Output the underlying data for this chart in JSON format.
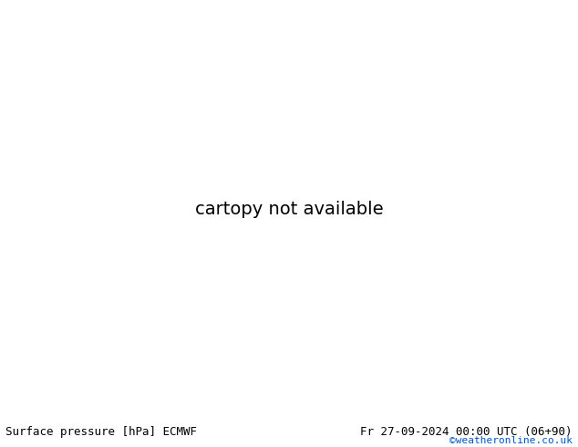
{
  "title_left": "Surface pressure [hPa] ECMWF",
  "title_right": "Fr 27-09-2024 00:00 UTC (06+90)",
  "copyright": "©weatheronline.co.uk",
  "bg_color": "#c8d8e8",
  "land_color": "#b8e8a0",
  "coast_color": "#888888",
  "fig_width": 6.34,
  "fig_height": 4.9,
  "dpi": 100,
  "bottom_bar_color": "#d4d4d4",
  "text_color_black": "#000000",
  "text_color_blue": "#0055cc",
  "font_size_bottom": 9,
  "font_size_copyright": 8,
  "lon_min": 90,
  "lon_max": 180,
  "lat_min": -58,
  "lat_max": 5,
  "red_contour_color": "#cc0000",
  "blue_contour_color": "#0055cc",
  "black_contour_color": "#000000"
}
